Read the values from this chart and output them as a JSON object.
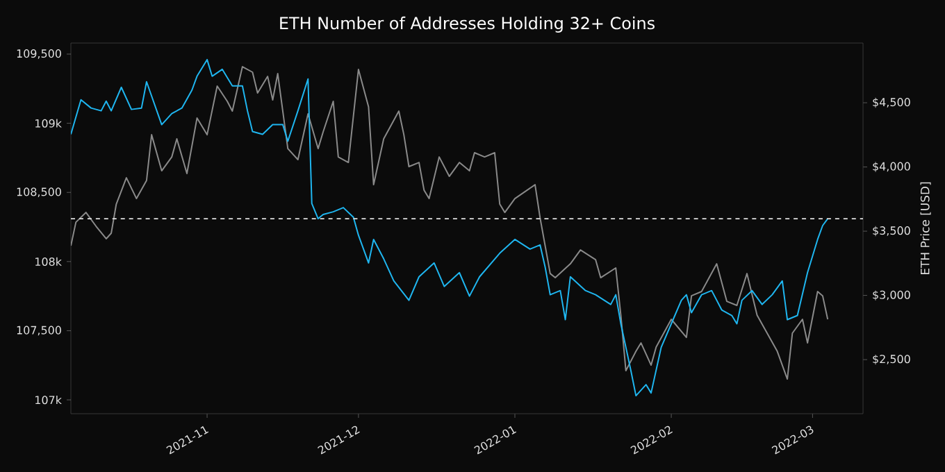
{
  "chart_data": {
    "type": "line",
    "title": "ETH Number of Addresses Holding 32+ Coins",
    "y2label": "ETH Price [USD]",
    "xlim": [
      "2021-10-05",
      "2022-03-11"
    ],
    "xticks": [
      "2021-11",
      "2021-12",
      "2022-01",
      "2022-02",
      "2022-03"
    ],
    "ylim": [
      106900,
      109580
    ],
    "yticks": [
      {
        "value": 107000,
        "label": "107k"
      },
      {
        "value": 107500,
        "label": "107,500"
      },
      {
        "value": 108000,
        "label": "108k"
      },
      {
        "value": 108500,
        "label": "108,500"
      },
      {
        "value": 109000,
        "label": "109k"
      },
      {
        "value": 109500,
        "label": "109,500"
      }
    ],
    "y2lim": [
      2079,
      4965
    ],
    "y2ticks": [
      {
        "value": 2500,
        "label": "$2,500"
      },
      {
        "value": 3000,
        "label": "$3,000"
      },
      {
        "value": 3500,
        "label": "$3,500"
      },
      {
        "value": 4000,
        "label": "$4,000"
      },
      {
        "value": 4500,
        "label": "$4,500"
      }
    ],
    "grid": false,
    "line_style": "solid",
    "ref_lines": [
      {
        "axis": "y",
        "value": 108310,
        "color": "#e0e0e0",
        "line_style": "dashed"
      }
    ],
    "series": [
      {
        "color": "#1fb6f0",
        "x": [
          "2021-10-05",
          "2021-10-07",
          "2021-10-09",
          "2021-10-11",
          "2021-10-12",
          "2021-10-13",
          "2021-10-15",
          "2021-10-17",
          "2021-10-19",
          "2021-10-20",
          "2021-10-23",
          "2021-10-25",
          "2021-10-27",
          "2021-10-29",
          "2021-10-30",
          "2021-11-01",
          "2021-11-02",
          "2021-11-04",
          "2021-11-06",
          "2021-11-08",
          "2021-11-09",
          "2021-11-10",
          "2021-11-12",
          "2021-11-14",
          "2021-11-16",
          "2021-11-17",
          "2021-11-19",
          "2021-11-21",
          "2021-11-21T18:00",
          "2021-11-23",
          "2021-11-24",
          "2021-11-26",
          "2021-11-28",
          "2021-11-30",
          "2021-12-01",
          "2021-12-03",
          "2021-12-04",
          "2021-12-06",
          "2021-12-08",
          "2021-12-11",
          "2021-12-13",
          "2021-12-16",
          "2021-12-18",
          "2021-12-21",
          "2021-12-23",
          "2021-12-25",
          "2021-12-29",
          "2022-01-01",
          "2022-01-04",
          "2022-01-06",
          "2022-01-07",
          "2022-01-08",
          "2022-01-10",
          "2022-01-11",
          "2022-01-12",
          "2022-01-15",
          "2022-01-17",
          "2022-01-20",
          "2022-01-21",
          "2022-01-22",
          "2022-01-24",
          "2022-01-25",
          "2022-01-27",
          "2022-01-28",
          "2022-01-30",
          "2022-02-01",
          "2022-02-03",
          "2022-02-04",
          "2022-02-05",
          "2022-02-07",
          "2022-02-09",
          "2022-02-11",
          "2022-02-13",
          "2022-02-14",
          "2022-02-15",
          "2022-02-17",
          "2022-02-19",
          "2022-02-21",
          "2022-02-23",
          "2022-02-24",
          "2022-02-26",
          "2022-02-28",
          "2022-03-02",
          "2022-03-03",
          "2022-03-04"
        ],
        "values": [
          108920,
          109170,
          109110,
          109090,
          109160,
          109090,
          109260,
          109100,
          109110,
          109300,
          108990,
          109070,
          109110,
          109240,
          109340,
          109460,
          109340,
          109390,
          109270,
          109270,
          109090,
          108940,
          108920,
          108990,
          108990,
          108870,
          109090,
          109320,
          108420,
          108310,
          108340,
          108360,
          108390,
          108320,
          108190,
          107990,
          108160,
          108020,
          107860,
          107720,
          107890,
          107990,
          107820,
          107920,
          107750,
          107890,
          108060,
          108160,
          108090,
          108120,
          107960,
          107760,
          107790,
          107580,
          107890,
          107790,
          107760,
          107690,
          107760,
          107550,
          107210,
          107030,
          107110,
          107050,
          107380,
          107550,
          107720,
          107760,
          107630,
          107760,
          107790,
          107650,
          107610,
          107550,
          107720,
          107790,
          107690,
          107760,
          107860,
          107580,
          107610,
          107920,
          108160,
          108260,
          108310
        ]
      },
      {
        "color": "#8a8a8a",
        "axis": "y2",
        "x": [
          "2021-10-05",
          "2021-10-06",
          "2021-10-08",
          "2021-10-10",
          "2021-10-12",
          "2021-10-13",
          "2021-10-14",
          "2021-10-16",
          "2021-10-18",
          "2021-10-20",
          "2021-10-21",
          "2021-10-23",
          "2021-10-25",
          "2021-10-26",
          "2021-10-28",
          "2021-10-30",
          "2021-11-01",
          "2021-11-03",
          "2021-11-05",
          "2021-11-06",
          "2021-11-08",
          "2021-11-10",
          "2021-11-11",
          "2021-11-13",
          "2021-11-14",
          "2021-11-15",
          "2021-11-17",
          "2021-11-19",
          "2021-11-21",
          "2021-11-23",
          "2021-11-24",
          "2021-11-26",
          "2021-11-27",
          "2021-11-29",
          "2021-12-01",
          "2021-12-03",
          "2021-12-04",
          "2021-12-06",
          "2021-12-09",
          "2021-12-10",
          "2021-12-11",
          "2021-12-13",
          "2021-12-14",
          "2021-12-15",
          "2021-12-17",
          "2021-12-19",
          "2021-12-21",
          "2021-12-23",
          "2021-12-24",
          "2021-12-26",
          "2021-12-28",
          "2021-12-29",
          "2021-12-30",
          "2022-01-01",
          "2022-01-05",
          "2022-01-06",
          "2022-01-08",
          "2022-01-09",
          "2022-01-12",
          "2022-01-14",
          "2022-01-17",
          "2022-01-18",
          "2022-01-21",
          "2022-01-22",
          "2022-01-23",
          "2022-01-25",
          "2022-01-26",
          "2022-01-28",
          "2022-01-29",
          "2022-02-01",
          "2022-02-04",
          "2022-02-05",
          "2022-02-07",
          "2022-02-10",
          "2022-02-12",
          "2022-02-14",
          "2022-02-16",
          "2022-02-18",
          "2022-02-20",
          "2022-02-22",
          "2022-02-24",
          "2022-02-25",
          "2022-02-27",
          "2022-02-28",
          "2022-03-02",
          "2022-03-03",
          "2022-03-04"
        ],
        "values": [
          3387,
          3570,
          3646,
          3538,
          3441,
          3484,
          3711,
          3916,
          3754,
          3895,
          4251,
          3970,
          4078,
          4219,
          3949,
          4381,
          4251,
          4630,
          4511,
          4435,
          4781,
          4738,
          4576,
          4705,
          4522,
          4727,
          4143,
          4057,
          4414,
          4143,
          4273,
          4511,
          4078,
          4035,
          4760,
          4468,
          3862,
          4219,
          4435,
          4251,
          4003,
          4035,
          3819,
          3754,
          4078,
          3927,
          4035,
          3970,
          4111,
          4078,
          4111,
          3711,
          3646,
          3754,
          3862,
          3603,
          3170,
          3138,
          3246,
          3354,
          3278,
          3138,
          3214,
          2846,
          2414,
          2565,
          2630,
          2457,
          2598,
          2814,
          2673,
          2997,
          3030,
          3246,
          2954,
          2922,
          3170,
          2846,
          2706,
          2565,
          2349,
          2706,
          2814,
          2630,
          3030,
          2997,
          2814
        ]
      }
    ]
  }
}
